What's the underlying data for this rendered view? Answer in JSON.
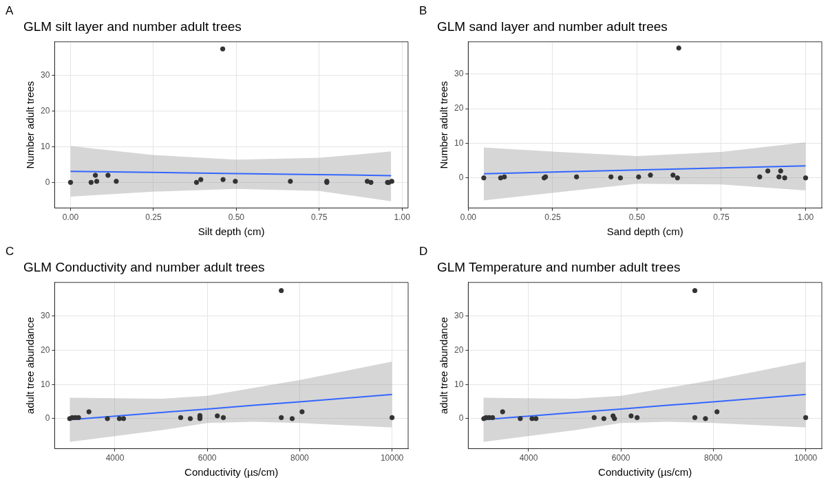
{
  "chart_data": [
    {
      "type": "scatter",
      "title": "GLM silt layer and number adult trees",
      "xlabel": "Silt depth (cm)",
      "ylabel": "Number adult trees",
      "annotations": [
        "A"
      ],
      "xlim": [
        -0.048,
        1.018
      ],
      "ylim": [
        -7.2,
        39.5
      ],
      "xticks": [
        {
          "value": 0,
          "label": "0.00"
        },
        {
          "value": 0.25,
          "label": "0.25"
        },
        {
          "value": 0.5,
          "label": "0.50"
        },
        {
          "value": 0.75,
          "label": "0.75"
        },
        {
          "value": 1,
          "label": "1.00"
        }
      ],
      "yticks": [
        0,
        10,
        20,
        30
      ],
      "grid": true,
      "legend": false,
      "marker": "circle",
      "series": [
        {
          "color": "#333333",
          "x": [
            0,
            0.062,
            0.075,
            0.079,
            0.113,
            0.138,
            0.38,
            0.393,
            0.459,
            0.46,
            0.497,
            0.663,
            0.773,
            0.773,
            0.895,
            0.906,
            0.956,
            0.96,
            0.969
          ],
          "values": [
            0,
            0,
            2,
            0.3,
            2,
            0.3,
            0,
            0.8,
            37.5,
            0.8,
            0.3,
            0.3,
            0,
            0.3,
            0.3,
            0,
            0,
            0,
            0.3
          ]
        },
        {
          "type": "line",
          "marker": "none",
          "color": "#3366ff",
          "x": [
            0,
            0.25,
            0.5,
            0.75,
            0.967
          ],
          "values": [
            3.1,
            2.8,
            2.5,
            2.2,
            1.9
          ],
          "lower": [
            -4,
            -2.6,
            -1.8,
            -2.4,
            -5.3
          ],
          "upper": [
            10.2,
            7.7,
            6.4,
            6.9,
            8.7
          ]
        }
      ]
    },
    {
      "type": "scatter",
      "title": "GLM sand layer and number adult trees",
      "xlabel": "Sand depth (cm)",
      "ylabel": "Number adult trees",
      "annotations": [
        "B"
      ],
      "xlim": [
        0,
        1.048
      ],
      "ylim": [
        -8.7,
        39.3
      ],
      "xticks": [
        {
          "value": 0,
          "label": "0.00"
        },
        {
          "value": 0.25,
          "label": "0.25"
        },
        {
          "value": 0.5,
          "label": "0.50"
        },
        {
          "value": 0.75,
          "label": "0.75"
        },
        {
          "value": 1,
          "label": "1.00"
        }
      ],
      "yticks": [
        0,
        10,
        20,
        30
      ],
      "grid": true,
      "legend": false,
      "marker": "circle",
      "series": [
        {
          "color": "#333333",
          "x": [
            0.046,
            0.096,
            0.107,
            0.225,
            0.229,
            0.321,
            0.423,
            0.451,
            0.505,
            0.54,
            0.607,
            0.62,
            0.624,
            0.864,
            0.888,
            0.921,
            0.926,
            0.938,
            1
          ],
          "values": [
            0,
            0,
            0.3,
            0,
            0.3,
            0.3,
            0.3,
            0,
            0.3,
            0.8,
            0.8,
            0,
            37.5,
            0.3,
            2,
            0.3,
            2,
            0,
            0
          ]
        },
        {
          "type": "line",
          "marker": "none",
          "color": "#3366ff",
          "x": [
            0.046,
            0.25,
            0.5,
            0.75,
            1
          ],
          "values": [
            1.2,
            1.7,
            2.3,
            2.9,
            3.5
          ],
          "lower": [
            -6.5,
            -4.3,
            -1.7,
            -1.9,
            -3.6
          ],
          "upper": [
            8.8,
            7.6,
            6.3,
            7.5,
            10.3
          ]
        }
      ]
    },
    {
      "type": "scatter",
      "title": "GLM Conductivity and number adult trees",
      "xlabel": "Conductivity (µs/cm)",
      "ylabel": "adult tree abundance",
      "annotations": [
        "C"
      ],
      "xlim": [
        2694,
        10349
      ],
      "ylim": [
        -8.8,
        39.9
      ],
      "xticks": [
        4000,
        6000,
        8000,
        10000
      ],
      "yticks": [
        0,
        10,
        20,
        30
      ],
      "grid": true,
      "legend": false,
      "marker": "circle",
      "series": [
        {
          "color": "#333333",
          "x": [
            3021,
            3077,
            3145,
            3212,
            3437,
            3837,
            4096,
            4186,
            5424,
            5632,
            5840,
            5840,
            5840,
            6217,
            6347,
            7602,
            7602,
            7838,
            8052,
            10000
          ],
          "values": [
            0,
            0.3,
            0.3,
            0.3,
            2,
            0,
            0,
            0,
            0.3,
            0,
            0,
            0.5,
            0.9,
            0.8,
            0.3,
            37.5,
            0.3,
            0,
            2,
            0.3
          ]
        },
        {
          "type": "line",
          "marker": "none",
          "color": "#3366ff",
          "x": [
            3021,
            5000,
            6000,
            7000,
            8000,
            10000
          ],
          "values": [
            -0.3,
            1.8,
            2.8,
            3.9,
            4.9,
            7.1
          ],
          "lower": [
            -6.8,
            -3.4,
            -1.3,
            -0.9,
            -1.3,
            -2.6
          ],
          "upper": [
            6.1,
            5.8,
            6.7,
            9,
            11.3,
            16.7
          ]
        }
      ]
    },
    {
      "type": "scatter",
      "title": "GLM Temperature and number adult trees",
      "xlabel": "Conductivity (µs/cm)",
      "ylabel": "adult tree abundance",
      "annotations": [
        "D"
      ],
      "xlim": [
        2694,
        10349
      ],
      "ylim": [
        -8.8,
        39.9
      ],
      "xticks": [
        4000,
        6000,
        8000,
        10000
      ],
      "yticks": [
        0,
        10,
        20,
        30
      ],
      "grid": true,
      "legend": false,
      "marker": "circle",
      "series": [
        {
          "color": "#333333",
          "x": [
            3030,
            3080,
            3145,
            3220,
            3437,
            3820,
            4075,
            4160,
            5420,
            5630,
            5830,
            5860,
            6220,
            6350,
            7600,
            7600,
            7830,
            8080,
            10000
          ],
          "values": [
            0,
            0.3,
            0.3,
            0.3,
            2,
            0,
            0,
            0,
            0.3,
            0,
            0.8,
            0,
            0.8,
            0.3,
            37.5,
            0.3,
            0,
            2,
            0.3
          ]
        },
        {
          "type": "line",
          "marker": "none",
          "color": "#3366ff",
          "x": [
            3021,
            5000,
            6000,
            7000,
            8000,
            10000
          ],
          "values": [
            -0.3,
            1.8,
            2.8,
            3.9,
            4.9,
            7.1
          ],
          "lower": [
            -6.8,
            -3.4,
            -1.3,
            -0.9,
            -1.3,
            -2.6
          ],
          "upper": [
            6.1,
            5.8,
            6.7,
            9,
            11.3,
            16.7
          ]
        }
      ]
    }
  ]
}
